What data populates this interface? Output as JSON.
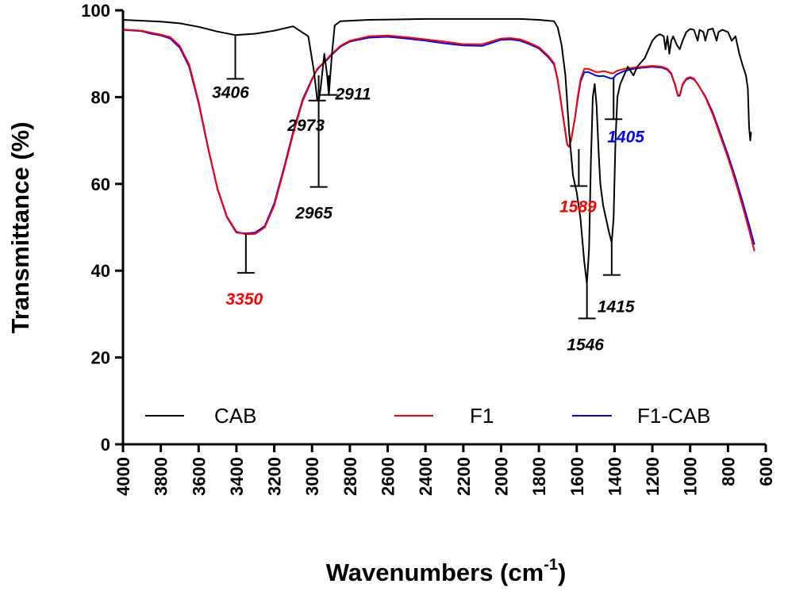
{
  "chart_data": {
    "type": "line",
    "title": "",
    "xlabel": "Wavenumbers (cm",
    "xlabel_sup": "-1",
    "xlabel_close": ")",
    "ylabel": "Transmittance (%)",
    "xlim": [
      4000,
      600
    ],
    "ylim": [
      0,
      100
    ],
    "x_reversed": true,
    "x_ticks": [
      4000,
      3800,
      3600,
      3400,
      3200,
      3000,
      2800,
      2600,
      2400,
      2200,
      2000,
      1800,
      1600,
      1400,
      1200,
      1000,
      800,
      600
    ],
    "y_ticks": [
      0,
      20,
      40,
      60,
      80,
      100
    ],
    "grid": false,
    "legend_position": "bottom-inside",
    "series": [
      {
        "name": "CAB",
        "color": "#000000",
        "points": [
          [
            4000,
            97.8
          ],
          [
            3900,
            97.6
          ],
          [
            3800,
            97.4
          ],
          [
            3700,
            97
          ],
          [
            3600,
            96.2
          ],
          [
            3500,
            95.1
          ],
          [
            3406,
            94.3
          ],
          [
            3300,
            94.6
          ],
          [
            3200,
            95.3
          ],
          [
            3100,
            96.3
          ],
          [
            3020,
            94
          ],
          [
            2990,
            86
          ],
          [
            2973,
            79.5
          ],
          [
            2965,
            79
          ],
          [
            2955,
            82
          ],
          [
            2935,
            90
          ],
          [
            2920,
            85
          ],
          [
            2911,
            80.5
          ],
          [
            2895,
            90
          ],
          [
            2880,
            96.5
          ],
          [
            2850,
            97.5
          ],
          [
            2700,
            97.8
          ],
          [
            2400,
            98
          ],
          [
            2200,
            98
          ],
          [
            2000,
            98
          ],
          [
            1900,
            98
          ],
          [
            1800,
            97.8
          ],
          [
            1720,
            97.5
          ],
          [
            1700,
            96
          ],
          [
            1680,
            92
          ],
          [
            1660,
            85
          ],
          [
            1640,
            72
          ],
          [
            1620,
            62
          ],
          [
            1600,
            58
          ],
          [
            1580,
            52
          ],
          [
            1560,
            42
          ],
          [
            1546,
            37
          ],
          [
            1535,
            45
          ],
          [
            1525,
            65
          ],
          [
            1515,
            80
          ],
          [
            1505,
            83
          ],
          [
            1495,
            78
          ],
          [
            1485,
            68
          ],
          [
            1475,
            60
          ],
          [
            1460,
            55
          ],
          [
            1445,
            52
          ],
          [
            1430,
            49
          ],
          [
            1415,
            46.5
          ],
          [
            1405,
            52
          ],
          [
            1395,
            70
          ],
          [
            1385,
            80
          ],
          [
            1370,
            83
          ],
          [
            1350,
            85
          ],
          [
            1330,
            87
          ],
          [
            1300,
            85
          ],
          [
            1280,
            87
          ],
          [
            1260,
            88
          ],
          [
            1240,
            89
          ],
          [
            1220,
            91
          ],
          [
            1200,
            93
          ],
          [
            1180,
            94
          ],
          [
            1160,
            94.5
          ],
          [
            1140,
            94
          ],
          [
            1130,
            91
          ],
          [
            1120,
            94
          ],
          [
            1110,
            90
          ],
          [
            1100,
            93
          ],
          [
            1090,
            94
          ],
          [
            1070,
            92
          ],
          [
            1055,
            91
          ],
          [
            1040,
            93
          ],
          [
            1020,
            95
          ],
          [
            1000,
            95.7
          ],
          [
            980,
            95.5
          ],
          [
            960,
            93
          ],
          [
            950,
            95.5
          ],
          [
            930,
            95
          ],
          [
            920,
            93
          ],
          [
            905,
            95.5
          ],
          [
            880,
            95.8
          ],
          [
            860,
            93
          ],
          [
            850,
            95
          ],
          [
            830,
            95.5
          ],
          [
            800,
            95
          ],
          [
            780,
            93
          ],
          [
            760,
            94
          ],
          [
            740,
            90
          ],
          [
            720,
            87
          ],
          [
            705,
            85
          ],
          [
            695,
            82
          ],
          [
            688,
            73
          ],
          [
            682,
            70
          ],
          [
            678,
            72
          ]
        ]
      },
      {
        "name": "F1",
        "color": "#ff0000",
        "points": [
          [
            4000,
            95.6
          ],
          [
            3900,
            95.3
          ],
          [
            3850,
            94.8
          ],
          [
            3800,
            94.4
          ],
          [
            3750,
            93.8
          ],
          [
            3700,
            91.8
          ],
          [
            3650,
            87.5
          ],
          [
            3600,
            79
          ],
          [
            3550,
            68.5
          ],
          [
            3500,
            59
          ],
          [
            3450,
            52.5
          ],
          [
            3400,
            49
          ],
          [
            3350,
            48.4
          ],
          [
            3300,
            48.5
          ],
          [
            3250,
            50
          ],
          [
            3200,
            55
          ],
          [
            3150,
            63
          ],
          [
            3100,
            71.5
          ],
          [
            3050,
            79
          ],
          [
            3000,
            84
          ],
          [
            2973,
            86.5
          ],
          [
            2950,
            87.5
          ],
          [
            2920,
            88.8
          ],
          [
            2900,
            89.8
          ],
          [
            2850,
            91.8
          ],
          [
            2800,
            93
          ],
          [
            2700,
            94
          ],
          [
            2600,
            94.2
          ],
          [
            2500,
            93.8
          ],
          [
            2400,
            93.3
          ],
          [
            2300,
            92.8
          ],
          [
            2200,
            92.2
          ],
          [
            2100,
            92.2
          ],
          [
            2000,
            93.5
          ],
          [
            1950,
            93.6
          ],
          [
            1900,
            93.3
          ],
          [
            1850,
            92.5
          ],
          [
            1800,
            91.5
          ],
          [
            1750,
            89.5
          ],
          [
            1720,
            87.8
          ],
          [
            1700,
            84
          ],
          [
            1680,
            78
          ],
          [
            1660,
            72
          ],
          [
            1650,
            69
          ],
          [
            1640,
            68.5
          ],
          [
            1630,
            70
          ],
          [
            1610,
            75
          ],
          [
            1595,
            80
          ],
          [
            1580,
            84
          ],
          [
            1560,
            86.5
          ],
          [
            1540,
            86.5
          ],
          [
            1520,
            86.2
          ],
          [
            1500,
            85.8
          ],
          [
            1480,
            85.8
          ],
          [
            1460,
            86
          ],
          [
            1440,
            85.8
          ],
          [
            1420,
            85.5
          ],
          [
            1405,
            85.5
          ],
          [
            1390,
            86
          ],
          [
            1350,
            86.5
          ],
          [
            1300,
            86.8
          ],
          [
            1250,
            87
          ],
          [
            1200,
            87.2
          ],
          [
            1150,
            87
          ],
          [
            1120,
            86.5
          ],
          [
            1100,
            85.5
          ],
          [
            1080,
            83
          ],
          [
            1065,
            80.5
          ],
          [
            1055,
            80.5
          ],
          [
            1040,
            83
          ],
          [
            1020,
            84.3
          ],
          [
            1000,
            84.6
          ],
          [
            980,
            84.3
          ],
          [
            960,
            83
          ],
          [
            920,
            80
          ],
          [
            880,
            76
          ],
          [
            840,
            71
          ],
          [
            800,
            66
          ],
          [
            760,
            60.5
          ],
          [
            720,
            54.5
          ],
          [
            680,
            48
          ],
          [
            660,
            44.5
          ]
        ]
      },
      {
        "name": "F1-CAB",
        "color": "#0000ff",
        "points": [
          [
            4000,
            95.5
          ],
          [
            3900,
            95.2
          ],
          [
            3850,
            94.6
          ],
          [
            3800,
            94.2
          ],
          [
            3750,
            93.5
          ],
          [
            3700,
            91.4
          ],
          [
            3650,
            87
          ],
          [
            3600,
            78.6
          ],
          [
            3550,
            68.2
          ],
          [
            3500,
            58.8
          ],
          [
            3450,
            52.3
          ],
          [
            3400,
            48.8
          ],
          [
            3350,
            48.6
          ],
          [
            3300,
            48.8
          ],
          [
            3250,
            50.3
          ],
          [
            3200,
            55.5
          ],
          [
            3150,
            63.5
          ],
          [
            3100,
            72
          ],
          [
            3050,
            79.4
          ],
          [
            3000,
            84.2
          ],
          [
            2973,
            86.3
          ],
          [
            2950,
            87.4
          ],
          [
            2920,
            88.6
          ],
          [
            2900,
            89.6
          ],
          [
            2850,
            91.6
          ],
          [
            2800,
            92.8
          ],
          [
            2700,
            93.7
          ],
          [
            2600,
            93.9
          ],
          [
            2500,
            93.5
          ],
          [
            2400,
            93
          ],
          [
            2300,
            92.4
          ],
          [
            2200,
            91.9
          ],
          [
            2100,
            91.8
          ],
          [
            2000,
            93.2
          ],
          [
            1950,
            93.3
          ],
          [
            1900,
            93
          ],
          [
            1850,
            92.2
          ],
          [
            1800,
            91.2
          ],
          [
            1750,
            89.2
          ],
          [
            1720,
            87.5
          ],
          [
            1700,
            83.8
          ],
          [
            1680,
            77.8
          ],
          [
            1660,
            71.8
          ],
          [
            1650,
            69
          ],
          [
            1640,
            68.6
          ],
          [
            1630,
            70
          ],
          [
            1610,
            75
          ],
          [
            1595,
            79.5
          ],
          [
            1580,
            83.5
          ],
          [
            1560,
            85.7
          ],
          [
            1540,
            85.8
          ],
          [
            1520,
            85.4
          ],
          [
            1500,
            85
          ],
          [
            1480,
            84.8
          ],
          [
            1460,
            84.9
          ],
          [
            1440,
            84.6
          ],
          [
            1420,
            84.3
          ],
          [
            1405,
            84.4
          ],
          [
            1390,
            85.2
          ],
          [
            1350,
            86
          ],
          [
            1300,
            86.5
          ],
          [
            1250,
            86.8
          ],
          [
            1200,
            87
          ],
          [
            1150,
            86.8
          ],
          [
            1120,
            86.3
          ],
          [
            1100,
            85.3
          ],
          [
            1080,
            82.8
          ],
          [
            1065,
            80.3
          ],
          [
            1055,
            80.3
          ],
          [
            1040,
            82.8
          ],
          [
            1020,
            84.1
          ],
          [
            1000,
            84.4
          ],
          [
            980,
            84.1
          ],
          [
            960,
            83
          ],
          [
            920,
            80.2
          ],
          [
            880,
            76.4
          ],
          [
            840,
            71.6
          ],
          [
            800,
            66.7
          ],
          [
            760,
            61.3
          ],
          [
            720,
            55.5
          ],
          [
            680,
            49.3
          ],
          [
            660,
            46
          ]
        ]
      }
    ],
    "annotations": [
      {
        "label": "3406",
        "color": "#000000",
        "x": 3406,
        "y_top": 94.1,
        "y_bottom": 84.2
      },
      {
        "label": "2973",
        "color": "#000000",
        "x": 2973,
        "y_top": 80.0,
        "y_bottom": 79.2
      },
      {
        "label": "2911",
        "color": "#000000",
        "x": 2911,
        "y_top": 85.0,
        "y_bottom": 80.5
      },
      {
        "label": "2965",
        "color": "#000000",
        "x": 2965,
        "y_top": 85.0,
        "y_bottom": 59.3
      },
      {
        "label": "3350",
        "color": "#ff0000",
        "x": 3350,
        "y_top": 48.4,
        "y_bottom": 39.5
      },
      {
        "label": "1589",
        "color": "#ff0000",
        "x": 1589,
        "y_top": 68.0,
        "y_bottom": 59.5
      },
      {
        "label": "1405",
        "color": "#0000ff",
        "x": 1405,
        "y_top": 84.3,
        "y_bottom": 74.9
      },
      {
        "label": "1415",
        "color": "#000000",
        "x": 1415,
        "y_top": 46.5,
        "y_bottom": 39.0
      },
      {
        "label": "1546",
        "color": "#000000",
        "x": 1546,
        "y_top": 37.0,
        "y_bottom": 29.0
      }
    ]
  }
}
